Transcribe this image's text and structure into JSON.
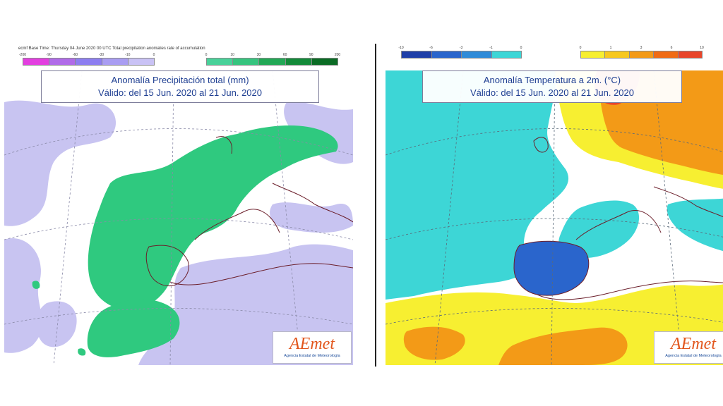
{
  "left_map": {
    "colorbar_header": "ecmf  Base Time: Thursday 04 June 2020 00 UTC Total precipitation anomalies rate of accumulation",
    "negative_ticks": [
      "-200",
      "-90",
      "-60",
      "-30",
      "-10",
      "0"
    ],
    "positive_ticks": [
      "0",
      "10",
      "30",
      "60",
      "90",
      "200"
    ],
    "title_line1": "Anomalía Precipitación total (mm)",
    "title_line2": "Válido: del 15 Jun. 2020 al 21 Jun. 2020",
    "colors": {
      "negative": [
        "#e33ee0",
        "#b06be8",
        "#8d7ef0",
        "#a99df2",
        "#c9c2f5"
      ],
      "positive": [
        "#48d199",
        "#36c47e",
        "#22a855",
        "#138a39",
        "#0a6b24"
      ],
      "sea": "#ffffff",
      "dry_anomaly": "#c8c4f1",
      "wet_anomaly": "#2fc97f"
    }
  },
  "right_map": {
    "cold_ticks": [
      "-10",
      "-6",
      "-3",
      "-1",
      "0"
    ],
    "warm_ticks": [
      "0",
      "1",
      "3",
      "6",
      "10"
    ],
    "title_line1": "Anomalía Temperatura a 2m. (°C)",
    "title_line2": "Válido: del 15 Jun. 2020 al 21 Jun. 2020",
    "colors": {
      "cold": [
        "#1f3fa8",
        "#2a65cc",
        "#2f8bd8",
        "#3dd6d6"
      ],
      "warm": [
        "#f7ef31",
        "#f7c81f",
        "#f39a17",
        "#f06b14",
        "#e8452b"
      ],
      "neutral": "#ffffff"
    }
  },
  "logo": {
    "main_prefix": "A",
    "main_accent": "E",
    "main_suffix": "met",
    "subtitle": "Agencia Estatal de Meteorología"
  }
}
